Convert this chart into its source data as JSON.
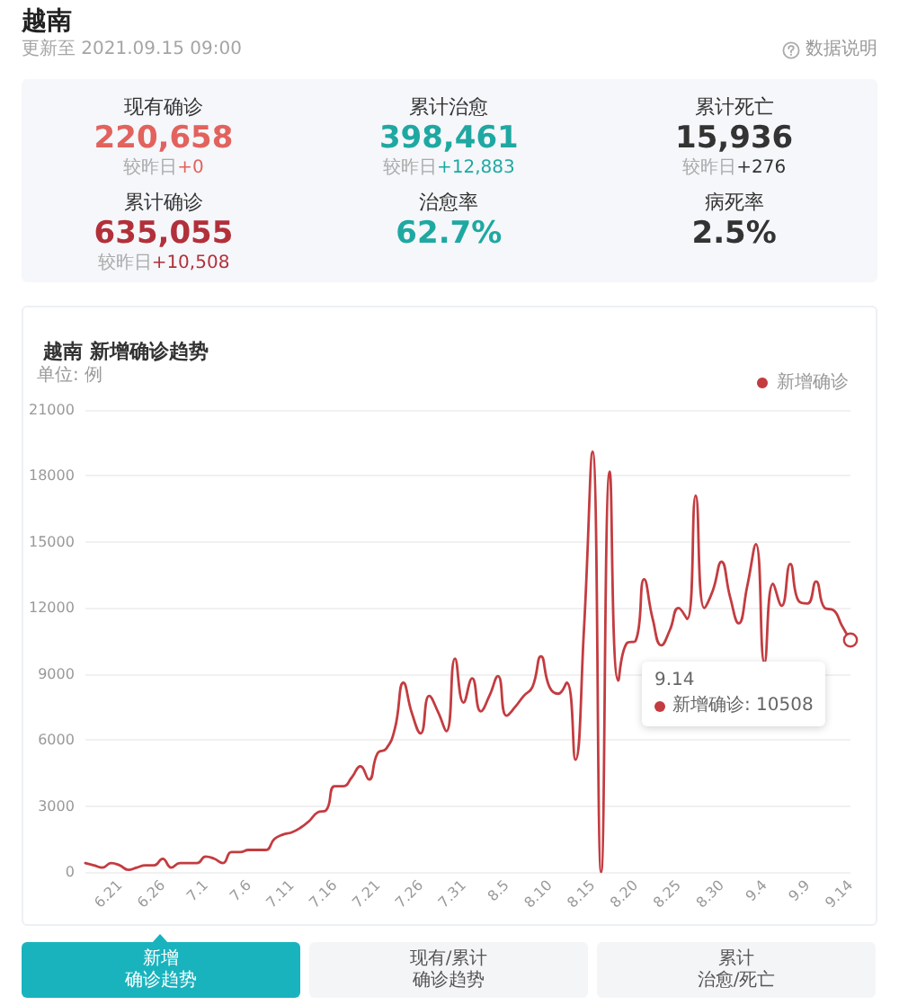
{
  "chart_data": [
    {
      "type": "other",
      "title": "越南",
      "subtitle": "更新至 2021.09.15 09:00",
      "annotations": [
        "数据说明",
        "现有确诊",
        "220,658",
        "较昨日+0",
        "累计治愈",
        "398,461",
        "较昨日+12,883",
        "累计死亡",
        "15,936",
        "较昨日+276",
        "累计确诊",
        "635,055",
        "较昨日+10,508",
        "治愈率",
        "62.7%",
        "病死率",
        "2.5%"
      ]
    },
    {
      "type": "line",
      "title": "越南 新增确诊趋势",
      "ylabel": "单位: 例",
      "categories": [
        null,
        null,
        null,
        null,
        "6.21",
        null,
        null,
        null,
        null,
        "6.26",
        null,
        null,
        null,
        null,
        "7.1",
        null,
        null,
        null,
        null,
        "7.6",
        null,
        null,
        null,
        null,
        "7.11",
        null,
        null,
        null,
        null,
        "7.16",
        null,
        null,
        null,
        null,
        "7.21",
        null,
        null,
        null,
        null,
        "7.26",
        null,
        null,
        null,
        null,
        "7.31",
        null,
        null,
        null,
        null,
        "8.5",
        null,
        null,
        null,
        null,
        "8.10",
        null,
        null,
        null,
        null,
        "8.15",
        null,
        null,
        null,
        null,
        "8.20",
        null,
        null,
        null,
        null,
        "8.25",
        null,
        null,
        null,
        null,
        "8.30",
        null,
        null,
        null,
        null,
        "9.4",
        null,
        null,
        null,
        null,
        "9.9",
        null,
        null,
        null,
        null,
        "9.14"
      ],
      "series": [
        {
          "name": "新增确诊",
          "color": "#c33c40",
          "values": [
            400,
            300,
            200,
            400,
            300,
            100,
            200,
            300,
            300,
            600,
            200,
            400,
            400,
            400,
            700,
            600,
            400,
            900,
            900,
            1000,
            1000,
            1000,
            1500,
            1700,
            1800,
            2000,
            2300,
            2700,
            2800,
            3900,
            3900,
            4300,
            4800,
            4200,
            5400,
            5600,
            6500,
            8600,
            7200,
            6300,
            8000,
            7300,
            6400,
            9700,
            7700,
            8800,
            7300,
            8000,
            8900,
            7100,
            7500,
            8000,
            8400,
            9800,
            8400,
            8100,
            8600,
            5100,
            11000,
            19100,
            0,
            18200,
            8700,
            10400,
            10500,
            13300,
            11500,
            10300,
            11000,
            12000,
            11500,
            17100,
            12000,
            12800,
            14100,
            12500,
            11300,
            13000,
            14900,
            9500,
            13100,
            12100,
            14000,
            12300,
            12200,
            13200,
            12000,
            11900,
            11200,
            10508
          ]
        }
      ],
      "ylim": [
        0,
        21000
      ],
      "yticks": [
        0,
        3000,
        6000,
        9000,
        12000,
        15000,
        18000,
        21000
      ],
      "grid": "y",
      "legend": "top right",
      "marker": "none",
      "annotations": [
        {
          "text": "9.14\n新增确诊: 10508",
          "x": "9.14",
          "y": 10508
        }
      ]
    },
    {
      "type": "other",
      "annotations": [
        "新增",
        "确诊趋势",
        "现有/累计",
        "确诊趋势",
        "累计",
        "治愈/死亡"
      ]
    }
  ]
}
